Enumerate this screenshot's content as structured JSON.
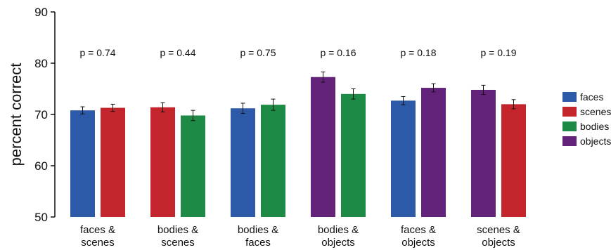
{
  "chart_data": {
    "type": "bar",
    "ylabel": "percent correct",
    "ylim": [
      50,
      90
    ],
    "yticks": [
      "50",
      "60",
      "70",
      "80",
      "90"
    ],
    "legend": {
      "placement": "right",
      "items": [
        {
          "name": "faces",
          "color": "#2c5aa8"
        },
        {
          "name": "scenes",
          "color": "#c4242b"
        },
        {
          "name": "bodies",
          "color": "#1d8a45"
        },
        {
          "name": "objects",
          "color": "#63237a"
        }
      ]
    },
    "groups": [
      {
        "label_line1": "faces &",
        "label_line2": "scenes",
        "p": "p = 0.74",
        "bars": [
          {
            "category": "faces",
            "value": 70.8,
            "err": 0.7
          },
          {
            "category": "scenes",
            "value": 71.3,
            "err": 0.7
          }
        ]
      },
      {
        "label_line1": "bodies &",
        "label_line2": "scenes",
        "p": "p = 0.44",
        "bars": [
          {
            "category": "scenes",
            "value": 71.4,
            "err": 0.9
          },
          {
            "category": "bodies",
            "value": 69.8,
            "err": 1.0
          }
        ]
      },
      {
        "label_line1": "bodies &",
        "label_line2": "faces",
        "p": "p = 0.75",
        "bars": [
          {
            "category": "faces",
            "value": 71.2,
            "err": 1.0
          },
          {
            "category": "bodies",
            "value": 71.9,
            "err": 1.1
          }
        ]
      },
      {
        "label_line1": "bodies &",
        "label_line2": "objects",
        "p": "p = 0.16",
        "bars": [
          {
            "category": "objects",
            "value": 77.3,
            "err": 1.0
          },
          {
            "category": "bodies",
            "value": 74.0,
            "err": 1.0
          }
        ]
      },
      {
        "label_line1": "faces &",
        "label_line2": "objects",
        "p": "p = 0.18",
        "bars": [
          {
            "category": "faces",
            "value": 72.7,
            "err": 0.8
          },
          {
            "category": "objects",
            "value": 75.2,
            "err": 0.8
          }
        ]
      },
      {
        "label_line1": "scenes &",
        "label_line2": "objects",
        "p": "p = 0.19",
        "bars": [
          {
            "category": "objects",
            "value": 74.8,
            "err": 0.9
          },
          {
            "category": "scenes",
            "value": 72.0,
            "err": 0.9
          }
        ]
      }
    ]
  }
}
